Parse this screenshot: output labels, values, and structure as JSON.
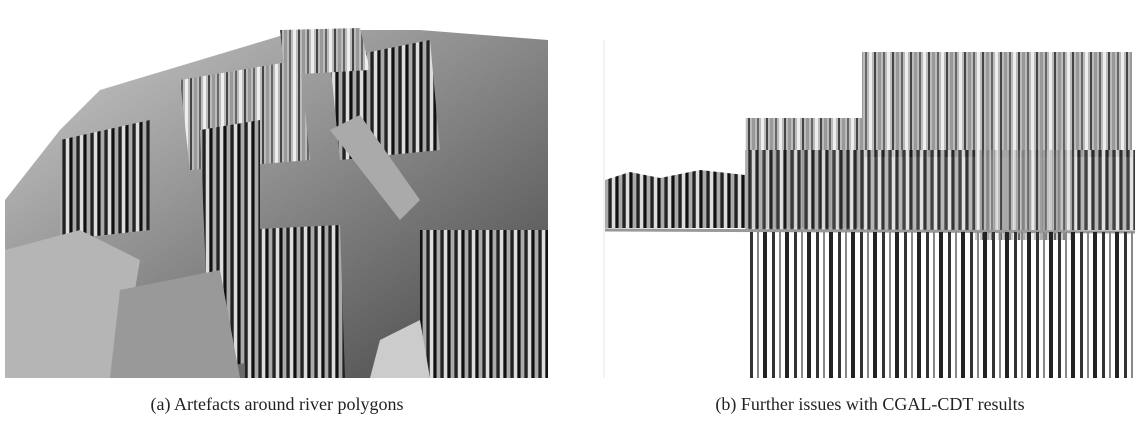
{
  "figure": {
    "panels": [
      {
        "caption": "(a) Artefacts around river polygons"
      },
      {
        "caption": "(b) Further issues with CGAL-CDT results"
      }
    ]
  }
}
